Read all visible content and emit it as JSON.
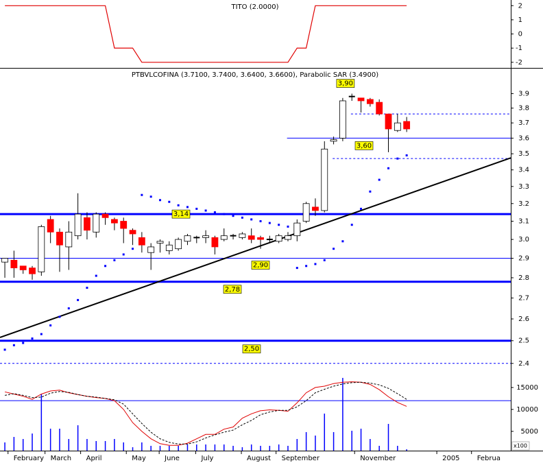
{
  "chart_data": [
    {
      "type": "line",
      "title": "TITO (2.0000)",
      "color": "#e00000",
      "values": [
        2,
        2,
        2,
        2,
        2,
        2,
        2,
        2,
        2,
        2,
        2,
        2,
        -1,
        -1,
        -1,
        -2,
        -2,
        -2,
        -2,
        -2,
        -2,
        -2,
        -2,
        -2,
        -2,
        -2,
        -2,
        -2,
        -2,
        -2,
        -2,
        -2,
        -1,
        -1,
        2,
        2,
        2,
        2,
        2,
        2,
        2,
        2,
        2,
        2,
        2
      ],
      "xlim": [
        -0.53,
        55.4
      ],
      "ylim": [
        -2.35,
        2.4
      ],
      "yticks": [
        2,
        1,
        0,
        -1,
        -2
      ]
    },
    {
      "type": "candlestick",
      "title": "PTBVLCOFINA (3.7100, 3.7400, 3.6400, 3.6600), Parabolic SAR (3.4900)",
      "open": [
        2.88,
        2.89,
        2.86,
        2.85,
        2.83,
        3.11,
        3.04,
        2.96,
        3.02,
        3.12,
        3.04,
        3.14,
        3.11,
        3.1,
        3.05,
        3.01,
        2.93,
        2.98,
        2.94,
        2.95,
        2.99,
        3.01,
        3.01,
        3.01,
        3.0,
        3.02,
        3.01,
        3.02,
        3.01,
        3.0,
        2.99,
        3.0,
        3.02,
        3.1,
        3.18,
        3.16,
        3.58,
        3.6,
        3.88,
        3.87,
        3.86,
        3.84,
        3.76,
        3.65,
        3.71
      ],
      "high": [
        2.9,
        2.94,
        2.86,
        2.86,
        3.08,
        3.13,
        3.06,
        3.1,
        3.26,
        3.15,
        3.15,
        3.15,
        3.12,
        3.12,
        3.06,
        3.04,
        2.98,
        3.0,
        2.99,
        3.01,
        3.03,
        3.02,
        3.05,
        3.02,
        3.06,
        3.03,
        3.04,
        3.06,
        3.02,
        3.02,
        3.03,
        3.04,
        3.11,
        3.21,
        3.23,
        3.58,
        3.61,
        3.87,
        3.9,
        3.87,
        3.87,
        3.86,
        3.76,
        3.76,
        3.74
      ],
      "low": [
        2.8,
        2.8,
        2.82,
        2.79,
        2.81,
        2.98,
        2.83,
        2.84,
        3.0,
        3.0,
        3.01,
        3.08,
        3.05,
        2.98,
        2.97,
        2.93,
        2.84,
        2.93,
        2.92,
        2.94,
        2.97,
        2.98,
        2.98,
        2.92,
        2.99,
        3.0,
        3.0,
        2.98,
        2.95,
        2.98,
        2.98,
        2.99,
        2.99,
        3.09,
        3.13,
        3.15,
        3.56,
        3.58,
        3.85,
        3.77,
        3.81,
        3.75,
        3.51,
        3.64,
        3.64
      ],
      "close": [
        2.9,
        2.85,
        2.84,
        2.82,
        3.07,
        3.04,
        2.97,
        3.04,
        3.14,
        3.05,
        3.14,
        3.12,
        3.09,
        3.06,
        3.03,
        2.97,
        2.96,
        2.99,
        2.97,
        3.0,
        3.02,
        3.01,
        3.02,
        2.96,
        3.02,
        3.02,
        3.03,
        3.0,
        3.0,
        3.0,
        3.02,
        3.02,
        3.09,
        3.2,
        3.16,
        3.53,
        3.59,
        3.85,
        3.88,
        3.85,
        3.83,
        3.76,
        3.66,
        3.7,
        3.66
      ],
      "up_color": "#ffffff",
      "down_color": "#ff0000",
      "flat_color": "#000000",
      "sar_values": [
        2.46,
        2.48,
        2.49,
        2.51,
        2.53,
        2.57,
        2.61,
        2.65,
        2.69,
        2.75,
        2.81,
        2.86,
        2.89,
        2.92,
        2.95,
        3.25,
        3.24,
        3.22,
        3.21,
        3.19,
        3.18,
        3.17,
        3.16,
        3.15,
        3.14,
        3.13,
        3.12,
        3.11,
        3.1,
        3.09,
        3.08,
        3.07,
        2.85,
        2.86,
        2.87,
        2.89,
        2.95,
        2.99,
        3.08,
        3.17,
        3.27,
        3.34,
        3.41,
        3.47,
        3.49
      ],
      "sar_color": "#0000ff",
      "log_scale": true,
      "xlim": [
        -0.53,
        55.4
      ],
      "ylim": [
        2.37,
        4.08
      ],
      "yticks": [
        3.9,
        3.8,
        3.7,
        3.6,
        3.5,
        3.4,
        3.3,
        3.2,
        3.1,
        {
          "value": 3,
          "label": "3.0"
        },
        2.9,
        2.8,
        2.7,
        2.6,
        2.5,
        2.4
      ],
      "levels": [
        {
          "value": 3.14,
          "label": "3,14",
          "style": "thick"
        },
        {
          "value": 2.9,
          "label": "2,90",
          "style": "thin"
        },
        {
          "value": 2.78,
          "label": "2,78",
          "style": "thick"
        },
        {
          "value": 2.5,
          "label": "2,50",
          "style": "thick"
        },
        {
          "value": 3.6,
          "label": "3,60",
          "style": "thin",
          "from": 30.9
        },
        {
          "value": 3.47,
          "style": "dashed",
          "from": 35.9
        },
        {
          "value": 3.76,
          "style": "dashed",
          "from": 37.9
        },
        {
          "value": 2.4,
          "style": "dashed"
        }
      ],
      "level_color": "#0000ff",
      "annotations": [
        {
          "x": 37.3,
          "value": 3.9,
          "label": "3,90"
        }
      ],
      "trendline": {
        "x": [
          -0.53,
          55.4
        ],
        "values": [
          2.515,
          3.474
        ],
        "color": "#000000"
      }
    },
    {
      "type": "volume",
      "color": "#0000ff",
      "values": [
        2480,
        3730,
        3260,
        4510,
        13430,
        5610,
        5610,
        3260,
        6390,
        3260,
        2790,
        2790,
        3260,
        2480,
        1380,
        2480,
        1700,
        1700,
        1700,
        1700,
        2010,
        2010,
        2010,
        2010,
        2010,
        1700,
        1380,
        2010,
        1700,
        1700,
        2010,
        1700,
        3260,
        4830,
        4040,
        9050,
        4830,
        17190,
        5140,
        5610,
        3260,
        1700,
        6700,
        1700,
        910
      ],
      "series": [
        {
          "color": "#e00000",
          "values": [
            14000,
            13500,
            13000,
            12300,
            13500,
            14200,
            14400,
            13800,
            13400,
            13000,
            12700,
            12500,
            12000,
            10000,
            7000,
            5000,
            3300,
            2200,
            1800,
            1800,
            2300,
            3300,
            4300,
            4300,
            5500,
            6000,
            8000,
            9000,
            9700,
            9900,
            9800,
            9600,
            11500,
            13800,
            15000,
            15300,
            15900,
            16200,
            16300,
            16200,
            15700,
            14500,
            12900,
            11600,
            10700
          ]
        },
        {
          "color": "#000000",
          "dashed": true,
          "values": [
            13200,
            13600,
            13200,
            12700,
            12800,
            13700,
            14100,
            13900,
            13400,
            13000,
            12800,
            12500,
            12200,
            11200,
            9000,
            6800,
            4800,
            3300,
            2500,
            2100,
            2100,
            2600,
            3500,
            4200,
            4800,
            5300,
            6500,
            7500,
            8800,
            9400,
            9800,
            9800,
            10600,
            12000,
            13800,
            14600,
            15300,
            15800,
            16100,
            16200,
            16000,
            15600,
            14800,
            13600,
            12300
          ]
        }
      ],
      "reference_line": 12000,
      "xlim": [
        -0.53,
        55.4
      ],
      "ylim": [
        600,
        18900
      ],
      "yticks": [
        15000,
        10000,
        5000
      ],
      "unit_label": "x100",
      "xticks": [
        {
          "value": 0.95,
          "label": "February"
        },
        {
          "value": 5.0,
          "label": "March"
        },
        {
          "value": 8.9,
          "label": "April"
        },
        {
          "value": 13.9,
          "label": "May"
        },
        {
          "value": 17.5,
          "label": "June"
        },
        {
          "value": 21.5,
          "label": "July"
        },
        {
          "value": 26.5,
          "label": "August"
        },
        {
          "value": 30.3,
          "label": "September"
        },
        {
          "value": 38.9,
          "label": "November"
        },
        {
          "value": 47.9,
          "label": "2005"
        },
        {
          "value": 51.7,
          "label": "Februa"
        }
      ]
    }
  ]
}
